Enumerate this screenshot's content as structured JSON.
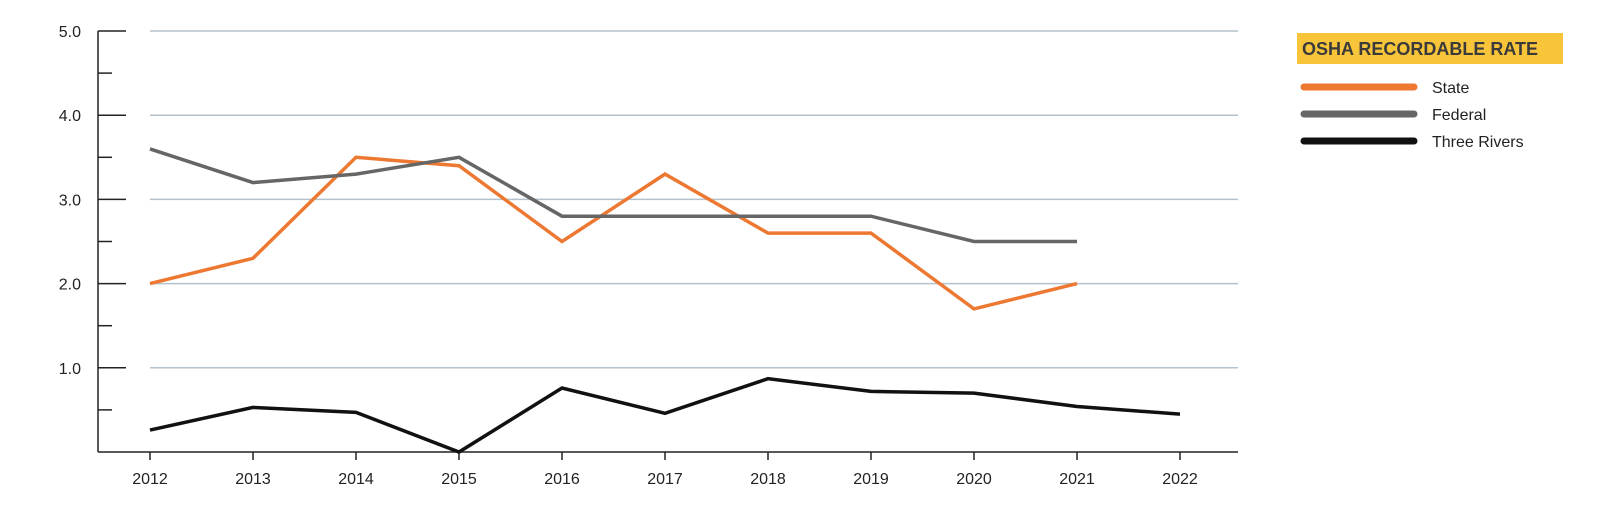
{
  "chart_data": {
    "type": "line",
    "title": "",
    "xlabel": "",
    "ylabel": "",
    "categories": [
      "2012",
      "2013",
      "2014",
      "2015",
      "2016",
      "2017",
      "2018",
      "2019",
      "2020",
      "2021",
      "2022"
    ],
    "ylim": [
      0,
      5.0
    ],
    "yticks": [
      1.0,
      2.0,
      3.0,
      4.0,
      5.0
    ],
    "ytick_labels": [
      "1.0",
      "2.0",
      "3.0",
      "4.0",
      "5.0"
    ],
    "yminor_ticks": [
      0.5,
      1.5,
      2.5,
      3.5,
      4.5
    ],
    "grid": true,
    "series": [
      {
        "name": "State",
        "color": "#ED7832",
        "values": [
          2.0,
          2.3,
          3.5,
          3.4,
          2.5,
          3.3,
          2.6,
          2.6,
          1.7,
          2.0,
          null
        ]
      },
      {
        "name": "Federal",
        "color": "#666666",
        "values": [
          3.6,
          3.2,
          3.3,
          3.5,
          2.8,
          2.8,
          2.8,
          2.8,
          2.5,
          2.5,
          null
        ]
      },
      {
        "name": "Three Rivers",
        "color": "#111111",
        "values": [
          0.26,
          0.53,
          0.47,
          0.0,
          0.76,
          0.46,
          0.87,
          0.72,
          0.7,
          0.54,
          0.45
        ]
      }
    ],
    "legend": {
      "title": "OSHA RECORDABLE RATE",
      "title_background": "#F8C53A",
      "placement": "right"
    }
  },
  "colors": {
    "grid": "#B3C2CC",
    "axis": "#222222"
  }
}
